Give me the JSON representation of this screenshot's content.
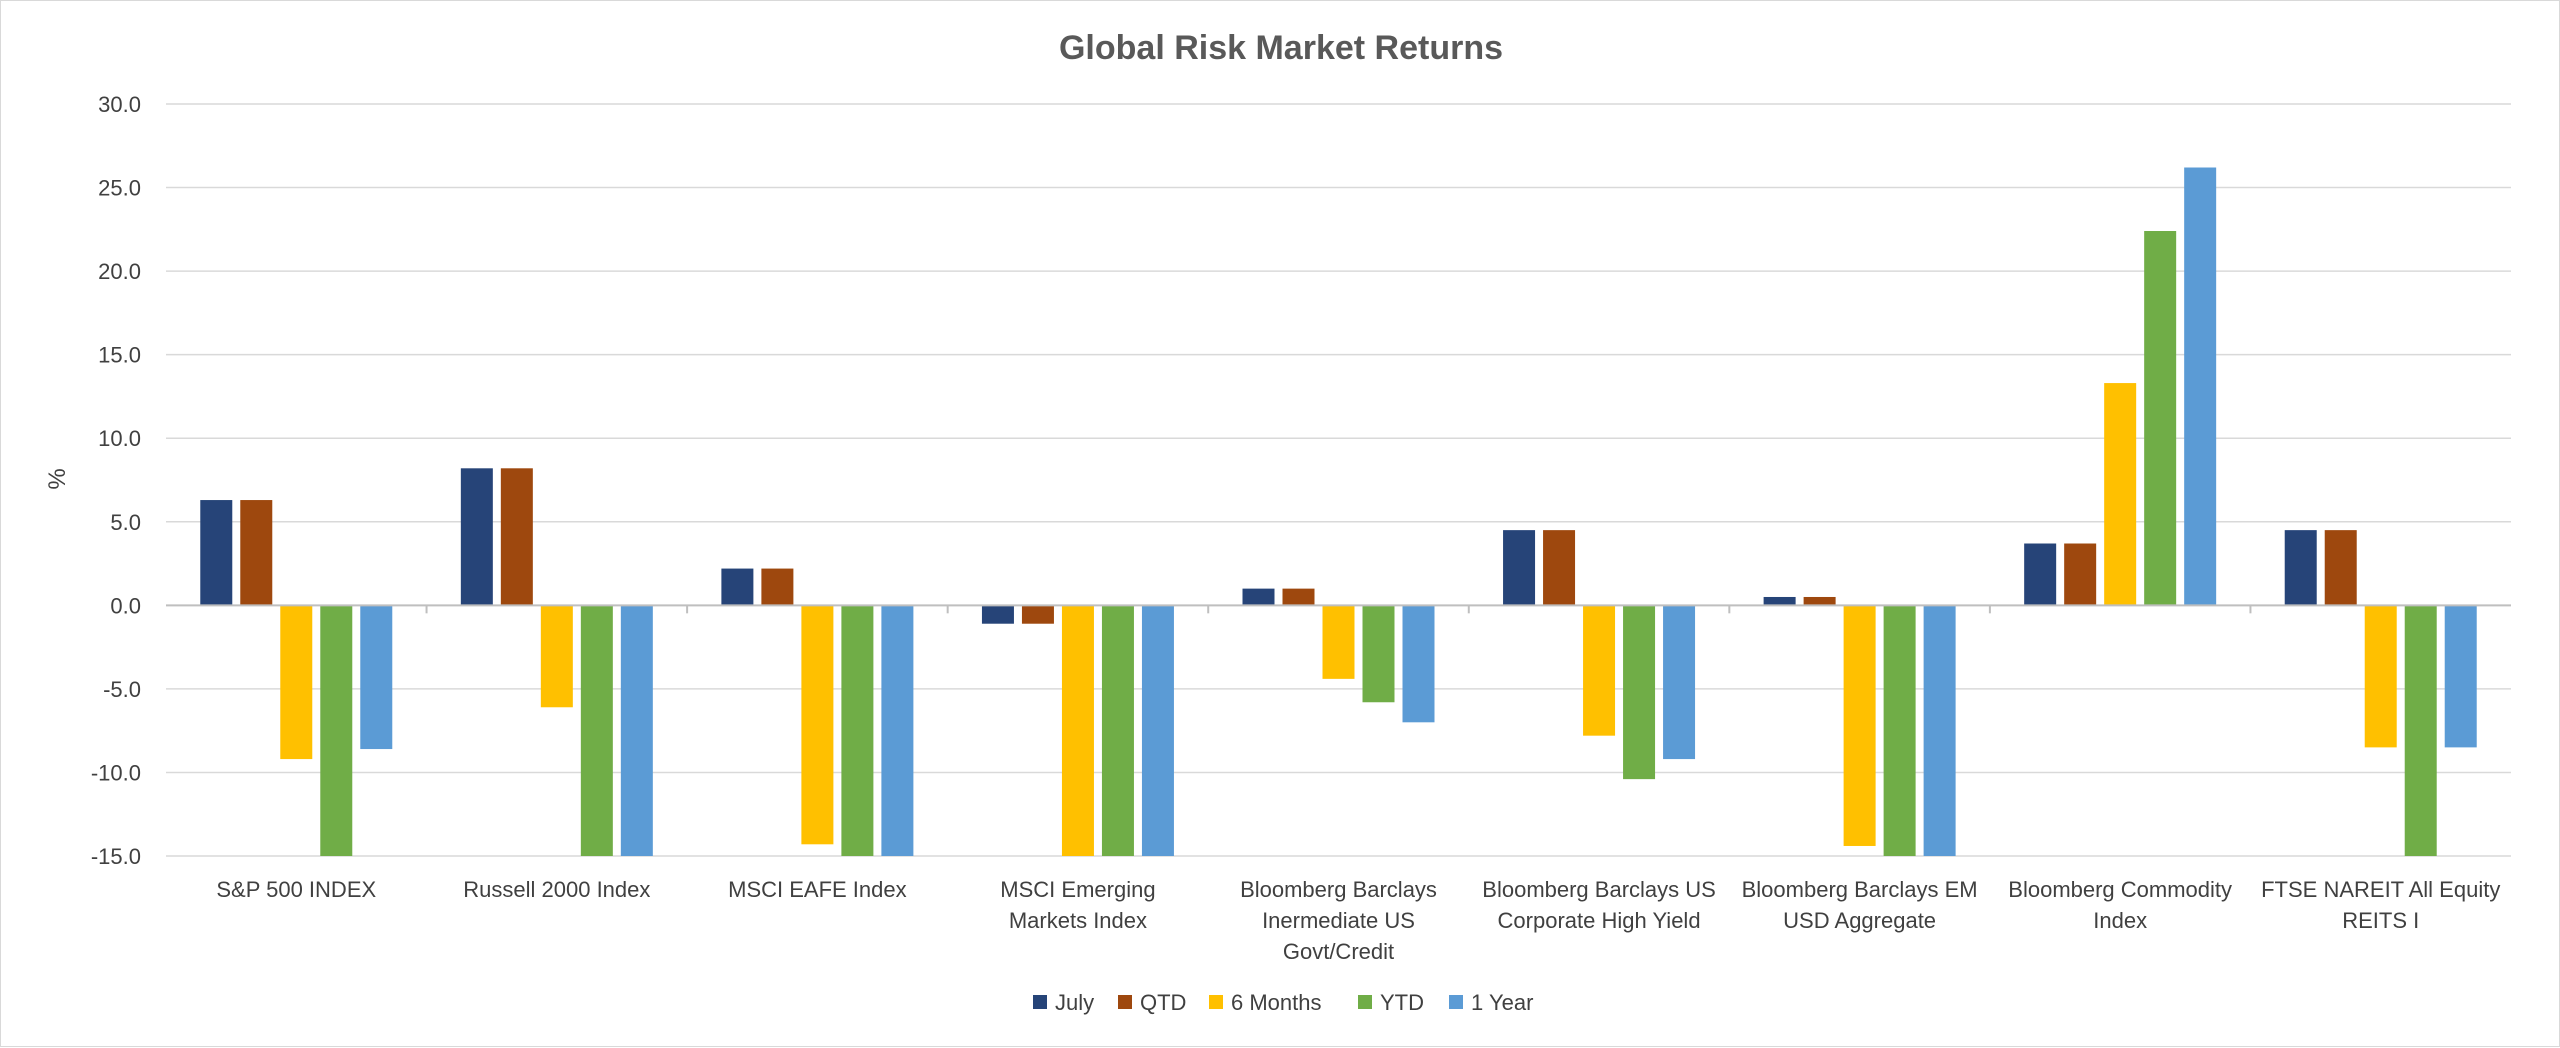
{
  "chart_data": {
    "type": "bar",
    "title": "Global Risk Market Returns",
    "xlabel": "",
    "ylabel": "%",
    "ylim": [
      -15,
      30
    ],
    "yticks": [
      "30.0",
      "25.0",
      "20.0",
      "15.0",
      "10.0",
      "5.0",
      "0.0",
      "-5.0",
      "-10.0",
      "-15.0"
    ],
    "grid": true,
    "legend_position": "bottom",
    "categories": [
      [
        "S&P 500 INDEX"
      ],
      [
        "Russell 2000 Index"
      ],
      [
        "MSCI EAFE Index"
      ],
      [
        "MSCI Emerging",
        "Markets Index"
      ],
      [
        "Bloomberg Barclays",
        "Inermediate US",
        "Govt/Credit"
      ],
      [
        "Bloomberg Barclays US",
        "Corporate High Yield"
      ],
      [
        "Bloomberg Barclays EM",
        "USD Aggregate"
      ],
      [
        "Bloomberg Commodity",
        "Index"
      ],
      [
        "FTSE NAREIT All Equity",
        "REITS I"
      ]
    ],
    "series": [
      {
        "name": "July",
        "color": "#264478",
        "values": [
          6.3,
          8.2,
          2.2,
          -1.1,
          1.0,
          4.5,
          0.5,
          3.7,
          4.5
        ]
      },
      {
        "name": "QTD",
        "color": "#9E480E",
        "values": [
          6.3,
          8.2,
          2.2,
          -1.1,
          1.0,
          4.5,
          0.5,
          3.7,
          4.5
        ]
      },
      {
        "name": "6 Months",
        "color": "#FFC000",
        "values": [
          -9.2,
          -6.1,
          -14.3,
          -15.0,
          -4.4,
          -7.8,
          -14.4,
          13.3,
          -8.5
        ]
      },
      {
        "name": "YTD",
        "color": "#70AD47",
        "values": [
          -15.0,
          -15.0,
          -15.0,
          -15.0,
          -5.8,
          -10.4,
          -15.0,
          22.4,
          -15.0
        ]
      },
      {
        "name": "1 Year",
        "color": "#5B9BD5",
        "values": [
          -8.6,
          -15.0,
          -15.0,
          -15.0,
          -7.0,
          -9.2,
          -15.0,
          26.2,
          -8.5
        ]
      }
    ]
  }
}
